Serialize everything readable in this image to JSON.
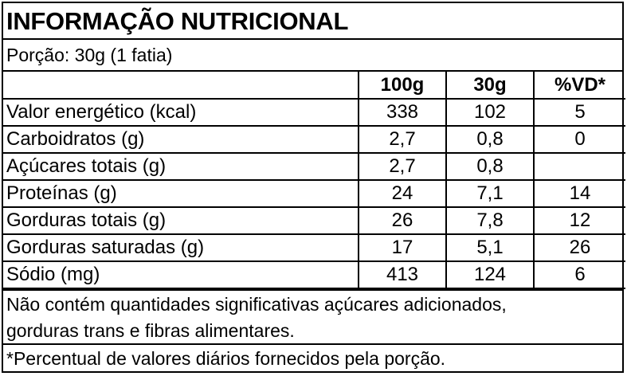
{
  "title": "INFORMAÇÃO NUTRICIONAL",
  "serving": "Porção: 30g (1 fatia)",
  "columns": [
    "",
    "100g",
    "30g",
    "%VD*"
  ],
  "rows": [
    {
      "label": "Valor energético (kcal)",
      "per100": "338",
      "per30": "102",
      "vd": "5"
    },
    {
      "label": "Carboidratos (g)",
      "per100": "2,7",
      "per30": "0,8",
      "vd": "0"
    },
    {
      "label": "Açúcares totais (g)",
      "per100": "2,7",
      "per30": "0,8",
      "vd": ""
    },
    {
      "label": "Proteínas (g)",
      "per100": "24",
      "per30": "7,1",
      "vd": "14"
    },
    {
      "label": "Gorduras totais (g)",
      "per100": "26",
      "per30": "7,8",
      "vd": "12"
    },
    {
      "label": "Gorduras saturadas (g)",
      "per100": "17",
      "per30": "5,1",
      "vd": "26"
    },
    {
      "label": "Sódio (mg)",
      "per100": "413",
      "per30": "124",
      "vd": "6"
    }
  ],
  "note_lines": [
    "Não contém quantidades significativas açúcares adicionados,",
    "gorduras trans e fibras alimentares."
  ],
  "footnote": "*Percentual de valores diários fornecidos pela porção."
}
